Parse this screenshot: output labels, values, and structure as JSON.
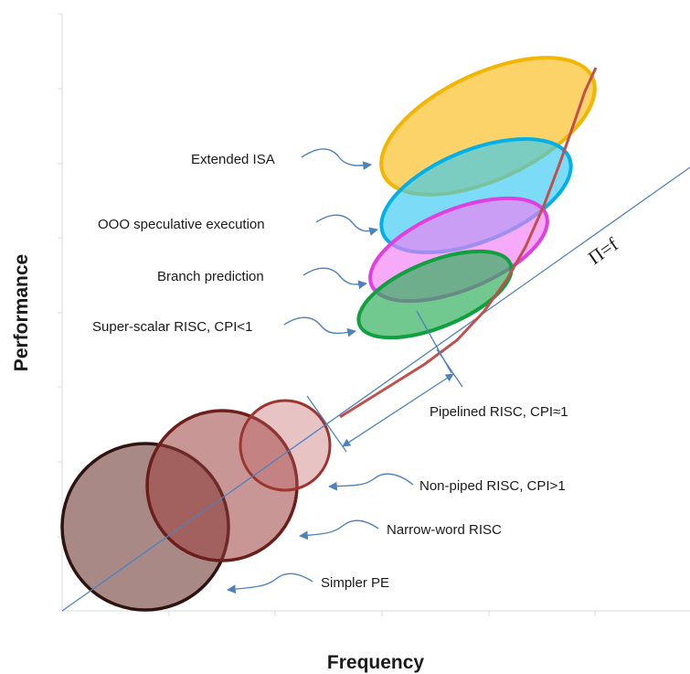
{
  "axes": {
    "x_title": "Frequency",
    "y_title": "Performance"
  },
  "reference_line_label": "Π=f",
  "labels": {
    "extended_isa": "Extended ISA",
    "ooo": "OOO speculative execution",
    "branch": "Branch prediction",
    "superscalar": "Super-scalar RISC, CPI<1",
    "pipelined": "Pipelined RISC, CPI≈1",
    "nonpiped": "Non-piped RISC, CPI>1",
    "narrow": "Narrow-word RISC",
    "simpler": "Simpler PE"
  },
  "colors": {
    "yellow_fill": "#F9C22E",
    "yellow_stroke": "#F2B500",
    "cyan_fill": "#35C9F2",
    "cyan_stroke": "#00B0E8",
    "pink_fill": "#F27CF2",
    "pink_stroke": "#E040E0",
    "green_fill": "#2DB05A",
    "green_stroke": "#10A040",
    "brown_dark": "#5A1F18",
    "brown_mid": "#9C4040",
    "brown_light": "#C06060",
    "curve": "#C0504D",
    "line_blue": "#4F81BD"
  }
}
